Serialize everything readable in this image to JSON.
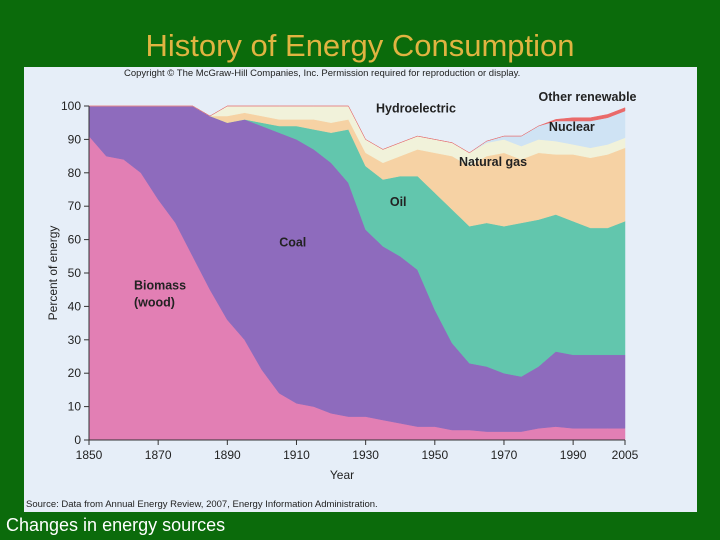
{
  "slide": {
    "title": "History of Energy Consumption",
    "caption": "Changes in energy sources"
  },
  "figure": {
    "copyright": "Copyright © The McGraw-Hill Companies, Inc. Permission required for reproduction or display.",
    "source": "Source: Data from Annual Energy Review, 2007, Energy Information Administration."
  },
  "colors": {
    "background": "#0b6b0b",
    "title": "#e0b441",
    "panel": "#e6eef8",
    "biomass": "#e27fb4",
    "coal": "#8e6bbd",
    "oil": "#62c6ad",
    "natural_gas": "#f6d2a4",
    "hydroelectric": "#f1f2da",
    "nuclear": "#cfe3f4",
    "other_renewable": "#ea6a6a"
  },
  "chart_data": {
    "type": "area",
    "stacked": true,
    "xlabel": "Year",
    "ylabel": "Percent of energy",
    "xlim": [
      1850,
      2005
    ],
    "ylim": [
      0,
      100
    ],
    "xticks": [
      1850,
      1870,
      1890,
      1910,
      1930,
      1950,
      1970,
      1990,
      2005
    ],
    "yticks": [
      0,
      10,
      20,
      30,
      40,
      50,
      60,
      70,
      80,
      90,
      100
    ],
    "x": [
      1850,
      1855,
      1860,
      1865,
      1870,
      1875,
      1880,
      1885,
      1890,
      1895,
      1900,
      1905,
      1910,
      1915,
      1920,
      1925,
      1930,
      1935,
      1940,
      1945,
      1950,
      1955,
      1960,
      1965,
      1970,
      1975,
      1980,
      1985,
      1990,
      1995,
      2000,
      2005
    ],
    "series": [
      {
        "name": "Biomass (wood)",
        "color": "#e27fb4",
        "values": [
          91,
          85,
          84,
          80,
          72,
          65,
          55,
          45,
          36,
          30,
          21,
          14,
          11,
          10,
          8,
          7,
          7,
          6,
          5,
          4,
          4,
          3,
          3,
          2.5,
          2.5,
          2.5,
          3.5,
          4,
          3.5,
          3.5,
          3.5,
          3.5
        ]
      },
      {
        "name": "Coal",
        "color": "#8e6bbd",
        "values": [
          9,
          15,
          16,
          20,
          28,
          35,
          45,
          52,
          59,
          66,
          73,
          78,
          79,
          77,
          75,
          70,
          56,
          52,
          50,
          47,
          35,
          26,
          20,
          19.5,
          17.5,
          16.5,
          18.5,
          22.5,
          22,
          22,
          22,
          22
        ]
      },
      {
        "name": "Oil",
        "color": "#62c6ad",
        "values": [
          0,
          0,
          0,
          0,
          0,
          0,
          0,
          0,
          0,
          0,
          1,
          2,
          4,
          6,
          9,
          16,
          19,
          20,
          24,
          28,
          35,
          40,
          41,
          43,
          44,
          46,
          44,
          41,
          40,
          38,
          38,
          40
        ]
      },
      {
        "name": "Natural gas",
        "color": "#f6d2a4",
        "values": [
          0,
          0,
          0,
          0,
          0,
          0,
          0,
          0,
          2,
          2,
          2,
          2,
          2,
          3,
          3,
          3,
          4,
          5,
          6,
          8,
          12,
          16,
          18,
          20,
          22,
          19,
          20,
          18,
          20,
          21,
          22,
          22
        ]
      },
      {
        "name": "Hydroelectric",
        "color": "#f1f2da",
        "values": [
          0,
          0,
          0,
          0,
          0,
          0,
          0,
          0,
          3,
          2,
          3,
          4,
          4,
          4,
          5,
          4,
          4,
          4,
          4,
          4,
          4,
          4,
          4,
          4,
          4,
          4,
          4,
          4,
          3,
          3,
          3,
          3
        ]
      },
      {
        "name": "Nuclear",
        "color": "#cfe3f4",
        "values": [
          0,
          0,
          0,
          0,
          0,
          0,
          0,
          0,
          0,
          0,
          0,
          0,
          0,
          0,
          0,
          0,
          0,
          0,
          0,
          0,
          0,
          0,
          0,
          0.5,
          1,
          3,
          4,
          6,
          7,
          8,
          8,
          8
        ]
      },
      {
        "name": "Other renewable",
        "color": "#ea6a6a",
        "values": [
          0,
          0,
          0,
          0,
          0,
          0,
          0,
          0,
          0,
          0,
          0,
          0,
          0,
          0,
          0,
          0,
          0,
          0,
          0,
          0,
          0,
          0,
          0,
          0,
          0,
          0,
          0,
          0.5,
          1,
          1,
          1,
          1
        ]
      }
    ],
    "annotations": [
      {
        "text": "Biomass",
        "x": 1863,
        "y": 45
      },
      {
        "text": "(wood)",
        "x": 1863,
        "y": 40
      },
      {
        "text": "Coal",
        "x": 1905,
        "y": 58
      },
      {
        "text": "Oil",
        "x": 1937,
        "y": 70
      },
      {
        "text": "Natural gas",
        "x": 1957,
        "y": 82
      },
      {
        "text": "Hydroelectric",
        "x": 1933,
        "y": 98
      },
      {
        "text": "Nuclear",
        "x": 1983,
        "y": 92.5
      },
      {
        "text": "Other renewable",
        "x": 1980,
        "y": 101.5
      }
    ],
    "grid": false
  }
}
